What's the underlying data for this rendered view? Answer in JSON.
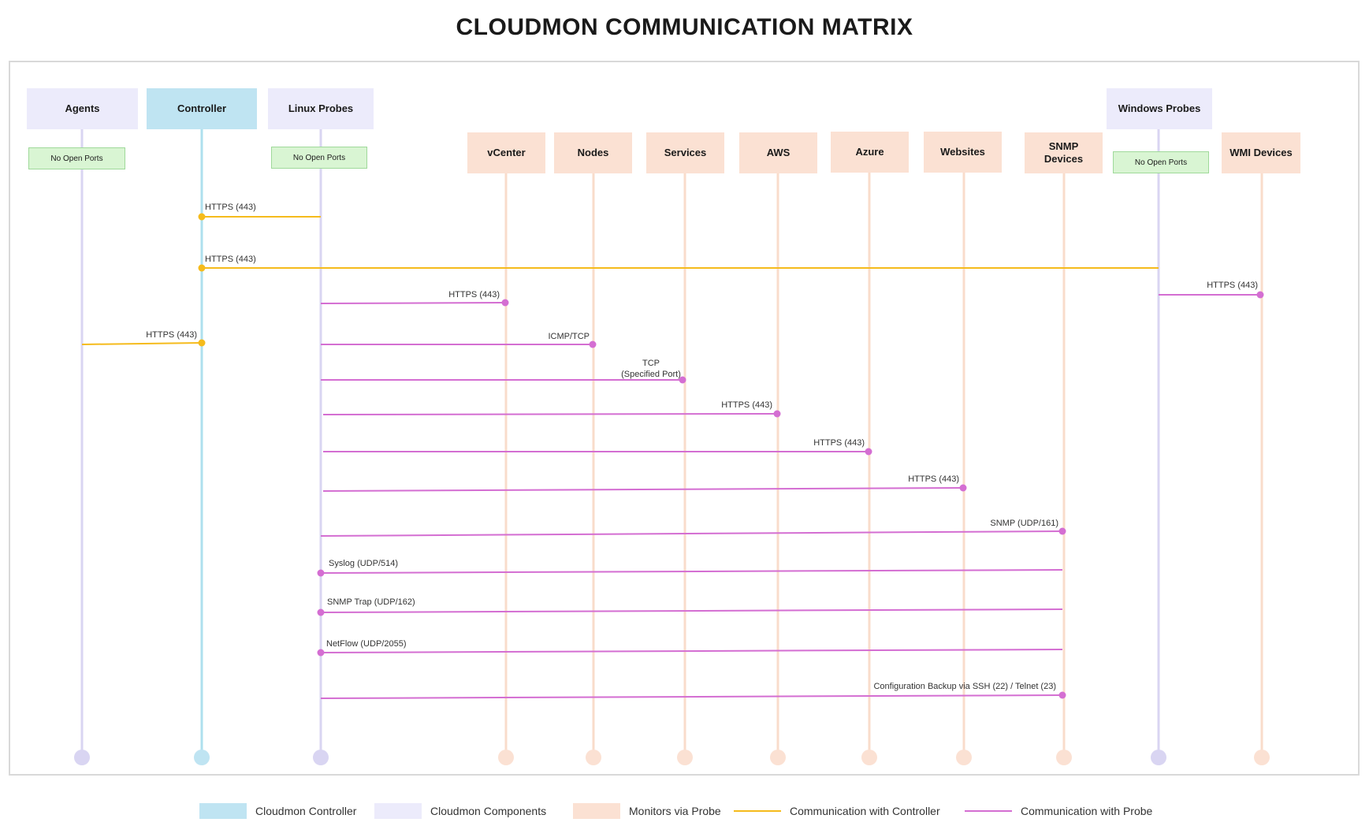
{
  "title": "CLOUDMON COMMUNICATION MATRIX",
  "colors": {
    "controller": "#bfe4f2",
    "controller_line": "#aee0ee",
    "component": "#ecebfb",
    "component_line": "#d9d5f2",
    "monitor": "#fbe1d3",
    "monitor_line": "#f9dccb",
    "badge_fill": "#d9f5d3",
    "badge_border": "#9fd99a",
    "controller_comm": "#f5bb1c",
    "probe_comm": "#d46ed2"
  },
  "components": {
    "agents": "Agents",
    "controller": "Controller",
    "linux_probes": "Linux Probes",
    "windows_probes": "Windows Probes"
  },
  "monitors": {
    "vcenter": "vCenter",
    "nodes": "Nodes",
    "services": "Services",
    "aws": "AWS",
    "azure": "Azure",
    "websites": "Websites",
    "snmp_devices_line1": "SNMP",
    "snmp_devices_line2": "Devices",
    "wmi_devices": "WMI Devices"
  },
  "badges": {
    "agents": "No Open Ports",
    "linux_probes": "No Open Ports",
    "windows_probes": "No Open Ports"
  },
  "connections": [
    {
      "from": "Linux Probes",
      "to": "Controller",
      "label": "HTTPS (443)",
      "type": "controller"
    },
    {
      "from": "Windows Probes",
      "to": "Controller",
      "label": "HTTPS (443)",
      "type": "controller"
    },
    {
      "from": "Windows Probes",
      "to": "WMI Devices",
      "label": "HTTPS (443)",
      "type": "probe"
    },
    {
      "from": "Linux Probes",
      "to": "vCenter",
      "label": "HTTPS (443)",
      "type": "probe"
    },
    {
      "from": "Agents",
      "to": "Controller",
      "label": "HTTPS (443)",
      "type": "controller"
    },
    {
      "from": "Linux Probes",
      "to": "Nodes",
      "label": "ICMP/TCP",
      "type": "probe"
    },
    {
      "from": "Linux Probes",
      "to": "Services",
      "label": "TCP",
      "label2": "(Specified Port)",
      "type": "probe"
    },
    {
      "from": "Linux Probes",
      "to": "AWS",
      "label": "HTTPS (443)",
      "type": "probe"
    },
    {
      "from": "Linux Probes",
      "to": "Azure",
      "label": "HTTPS (443)",
      "type": "probe"
    },
    {
      "from": "Linux Probes",
      "to": "Websites",
      "label": "HTTPS (443)",
      "type": "probe"
    },
    {
      "from": "Linux Probes",
      "to": "SNMP Devices",
      "label": "SNMP (UDP/161)",
      "type": "probe"
    },
    {
      "from": "SNMP Devices",
      "to": "Linux Probes",
      "label": "Syslog (UDP/514)",
      "type": "probe"
    },
    {
      "from": "SNMP Devices",
      "to": "Linux Probes",
      "label": "SNMP Trap (UDP/162)",
      "type": "probe"
    },
    {
      "from": "SNMP Devices",
      "to": "Linux Probes",
      "label": "NetFlow (UDP/2055)",
      "type": "probe"
    },
    {
      "from": "Linux Probes",
      "to": "SNMP Devices",
      "label": "Configuration Backup via SSH (22) / Telnet (23)",
      "type": "probe"
    }
  ],
  "legend": {
    "controller": "Cloudmon Controller",
    "components": "Cloudmon Components",
    "monitors": "Monitors via Probe",
    "controller_comm": "Communication with Controller",
    "probe_comm": "Communication with Probe"
  }
}
